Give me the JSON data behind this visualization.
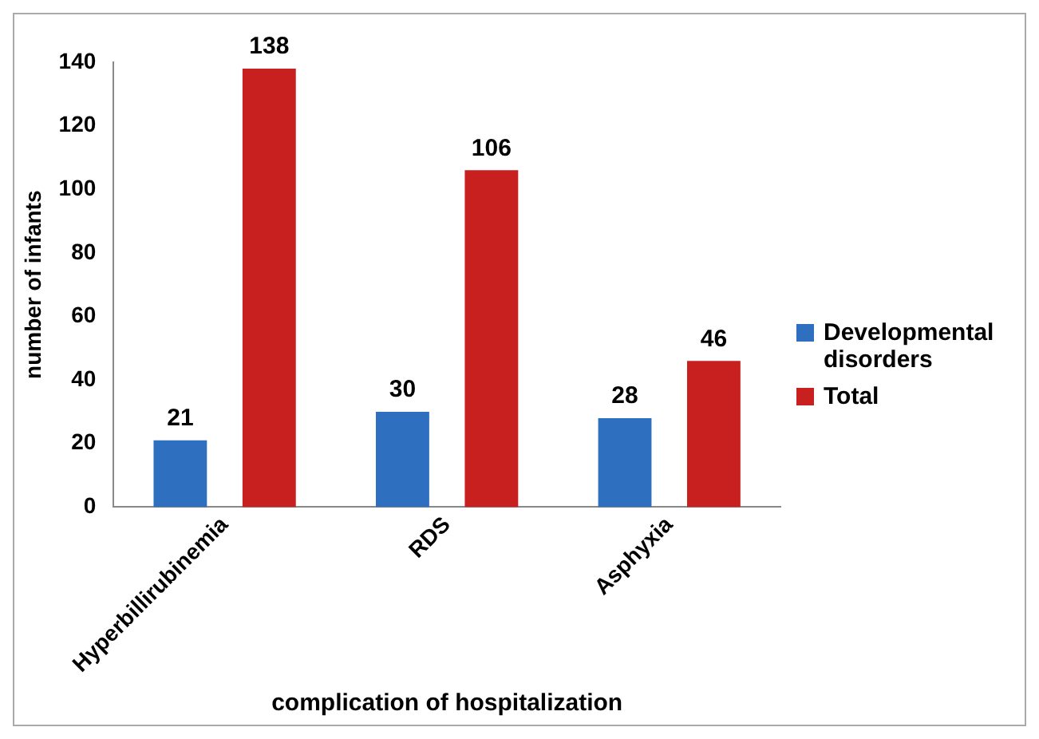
{
  "chart_data": {
    "type": "bar",
    "xlabel": "complication of hospitalization",
    "ylabel": "number of infants",
    "categories": [
      "Hyperbillirubinemia",
      "RDS",
      "Asphyxia"
    ],
    "series": [
      {
        "name": "Developmental disorders",
        "color": "#2e6fc0",
        "values": [
          21,
          30,
          28
        ]
      },
      {
        "name": "Total",
        "color": "#c8201e",
        "values": [
          138,
          106,
          46
        ]
      }
    ],
    "ylim": [
      0,
      140
    ],
    "yticks": [
      0,
      20,
      40,
      60,
      80,
      100,
      120,
      140
    ],
    "grid": false,
    "legend": "right",
    "data_labels": true
  }
}
